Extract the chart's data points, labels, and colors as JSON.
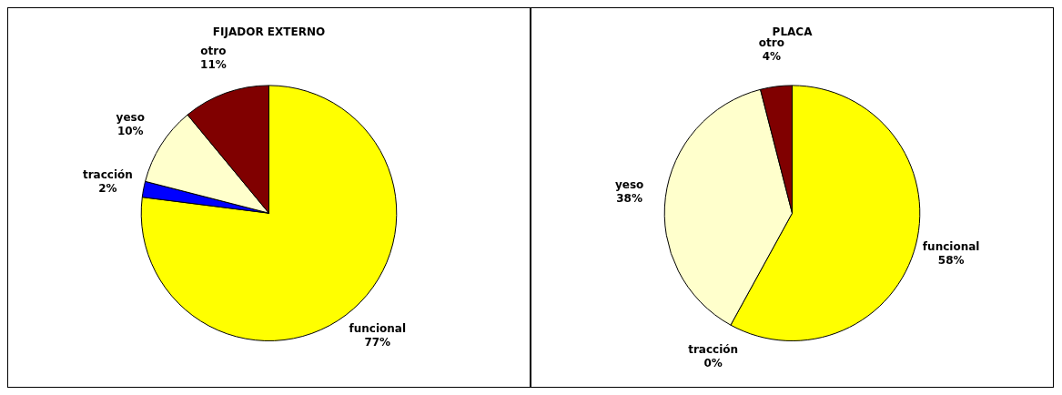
{
  "chart_data": [
    {
      "type": "pie",
      "title": "FIJADOR EXTERNO",
      "categories": [
        "funcional",
        "tracción",
        "yeso",
        "otro"
      ],
      "values": [
        77,
        2,
        10,
        11
      ],
      "value_labels": [
        "77%",
        "2%",
        "10%",
        "11%"
      ],
      "colors": [
        "#ffff00",
        "#0000ff",
        "#ffffcc",
        "#800000"
      ],
      "legend": false
    },
    {
      "type": "pie",
      "title": "PLACA",
      "categories": [
        "funcional",
        "tracción",
        "yeso",
        "otro"
      ],
      "values": [
        58,
        0,
        38,
        4
      ],
      "value_labels": [
        "58%",
        "0%",
        "38%",
        "4%"
      ],
      "colors": [
        "#ffff00",
        "#0000ff",
        "#ffffcc",
        "#800000"
      ],
      "legend": false
    }
  ]
}
